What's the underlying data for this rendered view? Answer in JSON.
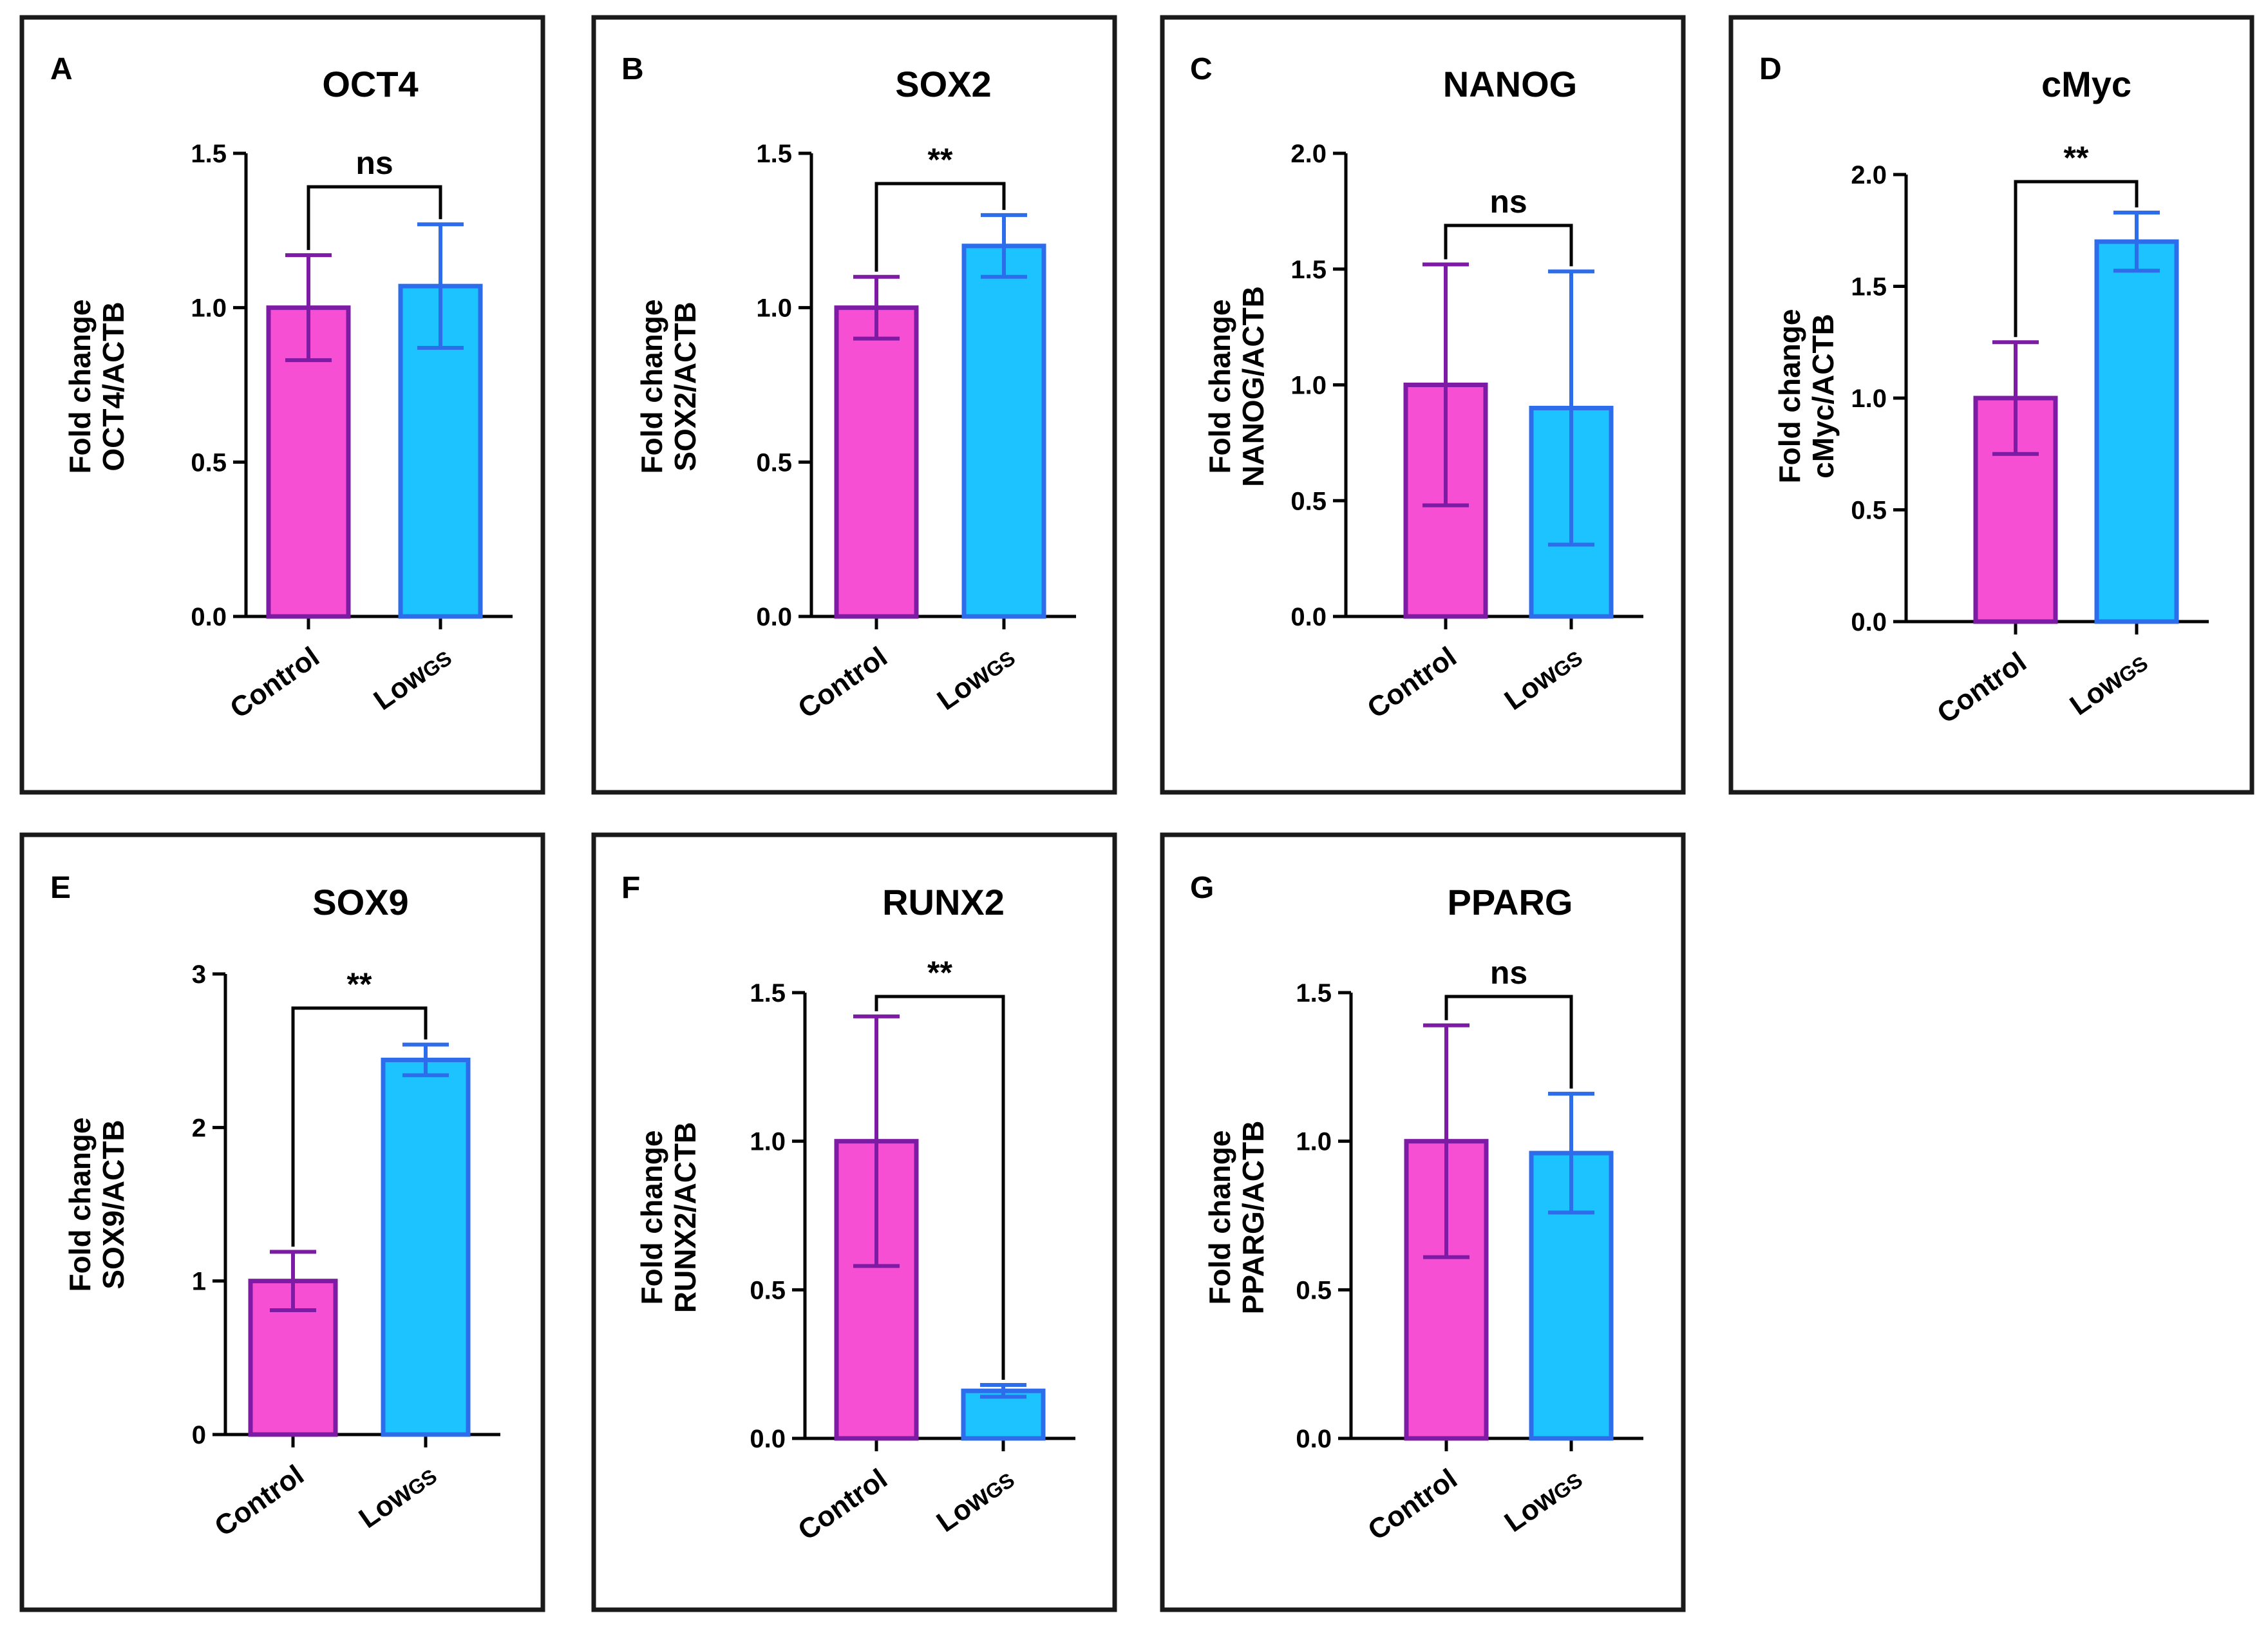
{
  "colors": {
    "control_fill": "#F74FD3",
    "control_stroke": "#7E1BA4",
    "lowgs_fill": "#1CC3FF",
    "lowgs_stroke": "#2D6CEB"
  },
  "chart_data": [
    {
      "type": "bar",
      "panel": "A",
      "title": "OCT4",
      "ylabel_line1": "Fold change",
      "ylabel_line2": "OCT4/ACTB",
      "categories": [
        {
          "main": "Control",
          "sub": ""
        },
        {
          "main": "Low",
          "sub": "GS"
        }
      ],
      "values": [
        1.0,
        1.07
      ],
      "errors": [
        0.17,
        0.2
      ],
      "ylim": [
        0,
        1.5
      ],
      "yticks": [
        0.0,
        0.5,
        1.0,
        1.5
      ],
      "tick_labels": [
        "0.0",
        "0.5",
        "1.0",
        "1.5"
      ],
      "significance": "ns"
    },
    {
      "type": "bar",
      "panel": "B",
      "title": "SOX2",
      "ylabel_line1": "Fold change",
      "ylabel_line2": "SOX2/ACTB",
      "categories": [
        {
          "main": "Control",
          "sub": ""
        },
        {
          "main": "Low",
          "sub": "GS"
        }
      ],
      "values": [
        1.0,
        1.2
      ],
      "errors": [
        0.1,
        0.1
      ],
      "ylim": [
        0,
        1.5
      ],
      "yticks": [
        0.0,
        0.5,
        1.0,
        1.5
      ],
      "tick_labels": [
        "0.0",
        "0.5",
        "1.0",
        "1.5"
      ],
      "significance": "**"
    },
    {
      "type": "bar",
      "panel": "C",
      "title": "NANOG",
      "ylabel_line1": "Fold change",
      "ylabel_line2": "NANOG/ACTB",
      "categories": [
        {
          "main": "Control",
          "sub": ""
        },
        {
          "main": "Low",
          "sub": "GS"
        }
      ],
      "values": [
        1.0,
        0.9
      ],
      "errors": [
        0.52,
        0.59
      ],
      "ylim": [
        0,
        2.0
      ],
      "yticks": [
        0.0,
        0.5,
        1.0,
        1.5,
        2.0
      ],
      "tick_labels": [
        "0.0",
        "0.5",
        "1.0",
        "1.5",
        "2.0"
      ],
      "significance": "ns"
    },
    {
      "type": "bar",
      "panel": "D",
      "title": "cMyc",
      "ylabel_line1": "Fold change",
      "ylabel_line2": "cMyc/ACTB",
      "categories": [
        {
          "main": "Control",
          "sub": ""
        },
        {
          "main": "Low",
          "sub": "GS"
        }
      ],
      "values": [
        1.0,
        1.7
      ],
      "errors": [
        0.25,
        0.13
      ],
      "ylim": [
        0,
        2.0
      ],
      "yticks": [
        0.0,
        0.5,
        1.0,
        1.5,
        2.0
      ],
      "tick_labels": [
        "0.0",
        "0.5",
        "1.0",
        "1.5",
        "2.0"
      ],
      "significance": "**"
    },
    {
      "type": "bar",
      "panel": "E",
      "title": "SOX9",
      "ylabel_line1": "Fold change",
      "ylabel_line2": "SOX9/ACTB",
      "categories": [
        {
          "main": "Control",
          "sub": ""
        },
        {
          "main": "Low",
          "sub": "GS"
        }
      ],
      "values": [
        1.0,
        2.44
      ],
      "errors": [
        0.19,
        0.1
      ],
      "ylim": [
        0,
        3
      ],
      "yticks": [
        0,
        1,
        2,
        3
      ],
      "tick_labels": [
        "0",
        "1",
        "2",
        "3"
      ],
      "significance": "**"
    },
    {
      "type": "bar",
      "panel": "F",
      "title": "RUNX2",
      "ylabel_line1": "Fold change",
      "ylabel_line2": "RUNX2/ACTB",
      "categories": [
        {
          "main": "Control",
          "sub": ""
        },
        {
          "main": "Low",
          "sub": "GS"
        }
      ],
      "values": [
        1.0,
        0.16
      ],
      "errors": [
        0.42,
        0.02
      ],
      "ylim": [
        0,
        1.5
      ],
      "yticks": [
        0.0,
        0.5,
        1.0,
        1.5
      ],
      "tick_labels": [
        "0.0",
        "0.5",
        "1.0",
        "1.5"
      ],
      "significance": "**"
    },
    {
      "type": "bar",
      "panel": "G",
      "title": "PPARG",
      "ylabel_line1": "Fold change",
      "ylabel_line2": "PPARG/ACTB",
      "categories": [
        {
          "main": "Control",
          "sub": ""
        },
        {
          "main": "Low",
          "sub": "GS"
        }
      ],
      "values": [
        1.0,
        0.96
      ],
      "errors": [
        0.39,
        0.2
      ],
      "ylim": [
        0,
        1.5
      ],
      "yticks": [
        0.0,
        0.5,
        1.0,
        1.5
      ],
      "tick_labels": [
        "0.0",
        "0.5",
        "1.0",
        "1.5"
      ],
      "significance": "ns"
    }
  ]
}
